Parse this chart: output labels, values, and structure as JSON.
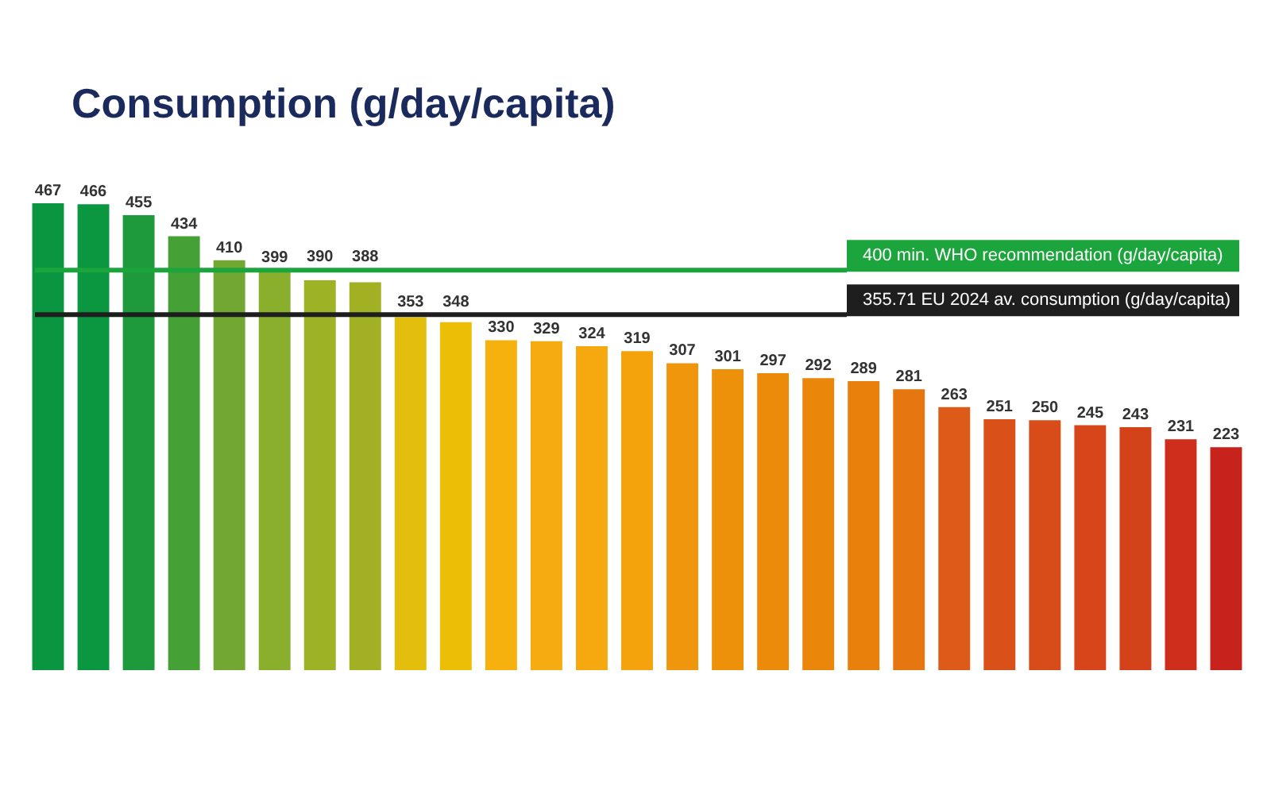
{
  "chart_data": {
    "type": "bar",
    "title": "Consumption (g/day/capita)",
    "categories": [
      null,
      null,
      null,
      null,
      null,
      null,
      null,
      null,
      null,
      null,
      null,
      null,
      null,
      null,
      null,
      null,
      null,
      null,
      null,
      null,
      null,
      null,
      null,
      null,
      null,
      null,
      null
    ],
    "values": [
      467,
      466,
      455,
      434,
      410,
      399,
      390,
      388,
      353,
      348,
      330,
      329,
      324,
      319,
      307,
      301,
      297,
      292,
      289,
      281,
      263,
      251,
      250,
      245,
      243,
      231,
      223
    ],
    "colors": [
      "#0a9640",
      "#0b9640",
      "#1e9a3c",
      "#45a035",
      "#72a832",
      "#8aaf2c",
      "#9eb226",
      "#a2b024",
      "#e4be0c",
      "#ecbf06",
      "#f6b10f",
      "#f6ac10",
      "#f6a80f",
      "#f5a30d",
      "#f0960c",
      "#ee910a",
      "#ec8a0a",
      "#ea860a",
      "#e9800c",
      "#e67710",
      "#de5a18",
      "#da5019",
      "#d84c19",
      "#d6461a",
      "#d4421a",
      "#ce2e1b",
      "#c8221c"
    ],
    "data_labels": true,
    "ref_lines": [
      {
        "axis": "y",
        "value": 400,
        "label": "400 min. WHO recommendation (g/day/capita)",
        "color": "#1ca53c"
      },
      {
        "axis": "y",
        "value": 355.71,
        "label": "355.71 EU 2024 av. consumption (g/day/capita)",
        "color": "#1e1e1e"
      }
    ],
    "tick_labels": false
  }
}
